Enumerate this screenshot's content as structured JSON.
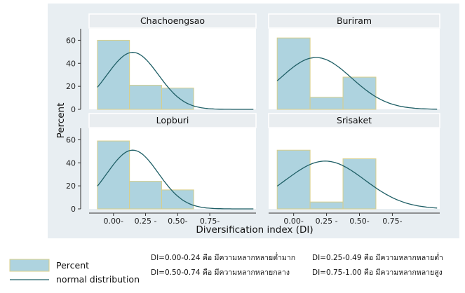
{
  "chart_data": {
    "type": "bar",
    "xlabel": "Diversification index (DI)",
    "ylabel": "Percent",
    "ylim": [
      0,
      70
    ],
    "yticks": [
      0,
      20,
      40,
      60
    ],
    "xticks": [
      {
        "x": 0.0,
        "label": "0.00-"
      },
      {
        "x": 0.25,
        "label": "0.25 -"
      },
      {
        "x": 0.5,
        "label": "0.50-"
      },
      {
        "x": 0.75,
        "label": "0.75-"
      }
    ],
    "bin_width": 0.25,
    "xlim": [
      -0.19,
      1.11
    ],
    "bins": [
      -0.125,
      0.125,
      0.375,
      0.625
    ],
    "panels": [
      {
        "name": "Chachoengsao",
        "values": [
          60,
          21,
          18.5
        ],
        "normal": {
          "mean": 0.15,
          "sd": 0.2,
          "peak": 49.5
        }
      },
      {
        "name": "Buriram",
        "values": [
          62,
          10.5,
          28
        ],
        "normal": {
          "mean": 0.17,
          "sd": 0.27,
          "peak": 45
        }
      },
      {
        "name": "Lopburi",
        "values": [
          59,
          24,
          16.5
        ],
        "normal": {
          "mean": 0.15,
          "sd": 0.2,
          "peak": 51
        }
      },
      {
        "name": "Srisaket",
        "values": [
          51,
          6,
          43.5
        ],
        "normal": {
          "mean": 0.24,
          "sd": 0.3,
          "peak": 41.5
        }
      }
    ],
    "legend": {
      "position": "bottom-left",
      "items": [
        {
          "label": "Percent",
          "kind": "bar"
        },
        {
          "label": "normal distribution",
          "kind": "line"
        }
      ]
    },
    "notes": [
      "DI=0.00-0.24 คือ มีความหลากหลายต่ำมาก",
      "DI=0.25-0.49 คือ มีความหลากหลายต่ำ",
      "DI=0.50-0.74 คือ มีความหลากหลายกลาง",
      "DI=0.75-1.00 คือ มีความหลากหลายสูง"
    ],
    "colors": {
      "bar_fill": "#aed3df",
      "bar_stroke": "#d8cf8a",
      "line": "#1f5f66",
      "plot_region": "#e8eef2",
      "strip": "#e9edf0",
      "plot_bg": "#ffffff"
    }
  }
}
